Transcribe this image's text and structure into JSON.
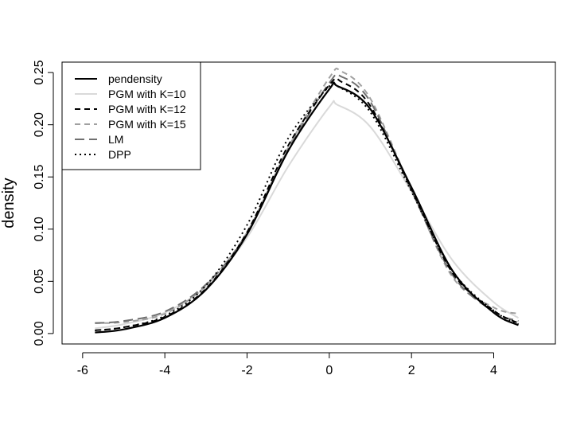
{
  "chart_data": {
    "type": "line",
    "title": "",
    "xlabel": "",
    "ylabel": "density",
    "xlim": [
      -6.5,
      5.5
    ],
    "ylim": [
      -0.01,
      0.26
    ],
    "xticks": [
      -6,
      -4,
      -2,
      0,
      2,
      4
    ],
    "yticks": [
      0.0,
      0.05,
      0.1,
      0.15,
      0.2,
      0.25
    ],
    "xtick_labels": [
      "-6",
      "-4",
      "-2",
      "0",
      "2",
      "4"
    ],
    "ytick_labels": [
      "0.00",
      "0.05",
      "0.10",
      "0.15",
      "0.20",
      "0.25"
    ],
    "grid": false,
    "legend_position": "top-left",
    "series": [
      {
        "name": "pendensity",
        "color": "#000000",
        "dash": "solid",
        "x": [
          -5.7,
          -5,
          -4,
          -3,
          -2,
          -1,
          0,
          0.2,
          1,
          2,
          3,
          4,
          4.6
        ],
        "y": [
          0.001,
          0.004,
          0.015,
          0.042,
          0.095,
          0.175,
          0.234,
          0.237,
          0.215,
          0.14,
          0.06,
          0.02,
          0.008
        ]
      },
      {
        "name": "PGM with K=10",
        "color": "#d9d9d9",
        "dash": "solid",
        "x": [
          -5.7,
          -5,
          -4,
          -3,
          -2,
          -1,
          0,
          0.2,
          1,
          2,
          3,
          4,
          4.6
        ],
        "y": [
          0.005,
          0.009,
          0.02,
          0.045,
          0.092,
          0.16,
          0.217,
          0.219,
          0.198,
          0.136,
          0.07,
          0.03,
          0.015
        ]
      },
      {
        "name": "PGM with K=12",
        "color": "#000000",
        "dash": "dashed",
        "x": [
          -5.7,
          -5,
          -4,
          -3,
          -2,
          -1,
          0,
          0.3,
          1,
          2,
          3,
          4,
          4.6
        ],
        "y": [
          0.003,
          0.006,
          0.016,
          0.043,
          0.097,
          0.18,
          0.238,
          0.241,
          0.218,
          0.138,
          0.058,
          0.022,
          0.01
        ]
      },
      {
        "name": "PGM with K=15",
        "color": "#a0a0a0",
        "dash": "dashed",
        "x": [
          -5.7,
          -5,
          -4,
          -3,
          -2,
          -1,
          0,
          0.3,
          1,
          2,
          3,
          4,
          4.6
        ],
        "y": [
          0.01,
          0.011,
          0.019,
          0.046,
          0.097,
          0.178,
          0.245,
          0.251,
          0.225,
          0.138,
          0.054,
          0.025,
          0.019
        ]
      },
      {
        "name": "LM",
        "color": "#707070",
        "dash": "longdash",
        "x": [
          -5.7,
          -5,
          -4,
          -3,
          -2,
          -1,
          0,
          0.3,
          1,
          2,
          3,
          4,
          4.6
        ],
        "y": [
          0.01,
          0.012,
          0.021,
          0.047,
          0.096,
          0.176,
          0.24,
          0.246,
          0.222,
          0.137,
          0.056,
          0.021,
          0.012
        ]
      },
      {
        "name": "DPP",
        "color": "#000000",
        "dash": "dotted",
        "x": [
          -5.7,
          -5,
          -4,
          -3,
          -2,
          -1,
          0,
          0.2,
          1,
          2,
          3,
          4,
          4.6
        ],
        "y": [
          0.003,
          0.006,
          0.017,
          0.046,
          0.104,
          0.187,
          0.237,
          0.237,
          0.212,
          0.136,
          0.06,
          0.022,
          0.009
        ]
      }
    ]
  }
}
